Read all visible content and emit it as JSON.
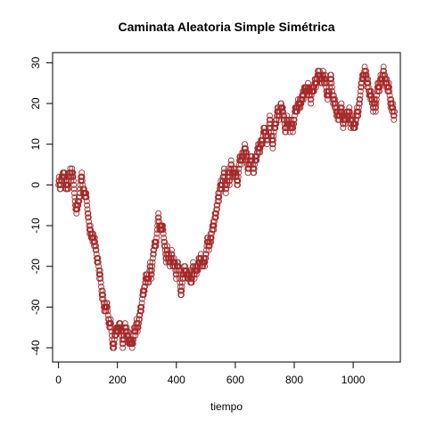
{
  "chart_data": {
    "type": "scatter",
    "title": "Caminata Aleatoria Simple Simétrica",
    "xlabel": "tiempo",
    "ylabel": "",
    "xlim": [
      -20,
      1160
    ],
    "ylim": [
      -43.5,
      32.5
    ],
    "x_ticks": [
      0,
      200,
      400,
      600,
      800,
      1000
    ],
    "y_ticks": [
      -40,
      -30,
      -20,
      -10,
      0,
      10,
      20,
      30
    ],
    "x_tick_labels": [
      "0",
      "200",
      "400",
      "600",
      "800",
      "1000"
    ],
    "y_tick_labels": [
      "-40",
      "-30",
      "-20",
      "-10",
      "0",
      "10",
      "20",
      "30"
    ],
    "grid": false,
    "legend": "none",
    "marker": "open-circle",
    "point_color": "#a52a2a",
    "n_points": 1141,
    "path_anchors_x": [
      0,
      10,
      20,
      30,
      40,
      50,
      60,
      70,
      80,
      90,
      100,
      110,
      120,
      130,
      140,
      150,
      160,
      170,
      180,
      190,
      200,
      210,
      220,
      230,
      240,
      250,
      260,
      270,
      280,
      290,
      300,
      310,
      320,
      330,
      340,
      350,
      360,
      370,
      380,
      390,
      400,
      410,
      420,
      430,
      440,
      450,
      460,
      470,
      480,
      490,
      500,
      510,
      520,
      530,
      540,
      550,
      560,
      570,
      580,
      590,
      600,
      610,
      620,
      630,
      640,
      650,
      660,
      670,
      680,
      690,
      700,
      710,
      720,
      730,
      740,
      750,
      760,
      770,
      780,
      790,
      800,
      810,
      820,
      830,
      840,
      850,
      860,
      870,
      880,
      890,
      900,
      910,
      920,
      930,
      940,
      950,
      960,
      970,
      980,
      990,
      1000,
      1010,
      1020,
      1030,
      1040,
      1050,
      1060,
      1070,
      1080,
      1090,
      1100,
      1110,
      1120,
      1130,
      1140
    ],
    "path_anchors_y": [
      0,
      2,
      1,
      0,
      4,
      2,
      -6,
      -4,
      2,
      -2,
      -8,
      -12,
      -14,
      -18,
      -22,
      -26,
      -30,
      -34,
      -36,
      -38,
      -36,
      -34,
      -38,
      -36,
      -39,
      -40,
      -36,
      -34,
      -30,
      -26,
      -22,
      -20,
      -18,
      -14,
      -8,
      -10,
      -14,
      -16,
      -18,
      -20,
      -22,
      -22,
      -24,
      -20,
      -22,
      -24,
      -22,
      -20,
      -20,
      -20,
      -18,
      -16,
      -12,
      -8,
      -4,
      0,
      1,
      0,
      1,
      2,
      4,
      2,
      6,
      8,
      6,
      5,
      4,
      6,
      8,
      10,
      14,
      12,
      14,
      12,
      16,
      16,
      18,
      14,
      16,
      14,
      16,
      18,
      20,
      22,
      24,
      22,
      24,
      26,
      28,
      26,
      26,
      22,
      24,
      22,
      20,
      18,
      20,
      16,
      18,
      16,
      14,
      16,
      20,
      26,
      28,
      26,
      22,
      20,
      22,
      24,
      26,
      26,
      24,
      20,
      18
    ]
  }
}
